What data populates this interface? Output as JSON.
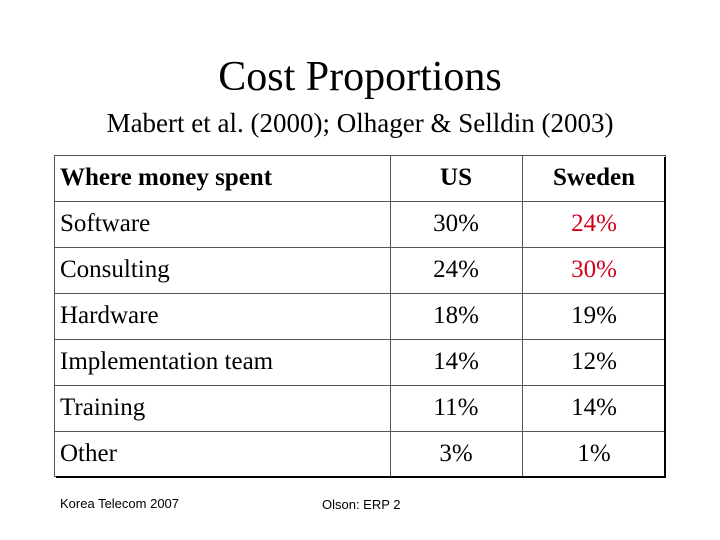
{
  "slide": {
    "title": "Cost Proportions",
    "subtitle": "Mabert et al. (2000); Olhager & Selldin (2003)"
  },
  "table": {
    "headers": [
      "Where money spent",
      "US",
      "Sweden"
    ],
    "rows": [
      {
        "item": "Software",
        "us": "30%",
        "sweden": "24%"
      },
      {
        "item": "Consulting",
        "us": "24%",
        "sweden": "30%"
      },
      {
        "item": "Hardware",
        "us": "18%",
        "sweden": "19%"
      },
      {
        "item": "Implementation team",
        "us": "14%",
        "sweden": "12%"
      },
      {
        "item": "Training",
        "us": "11%",
        "sweden": "14%"
      },
      {
        "item": "Other",
        "us": "3%",
        "sweden": "1%"
      }
    ],
    "highlight_color": "#d0021b"
  },
  "footer": {
    "left": "Korea Telecom 2007",
    "center": "Olson: ERP 2"
  }
}
